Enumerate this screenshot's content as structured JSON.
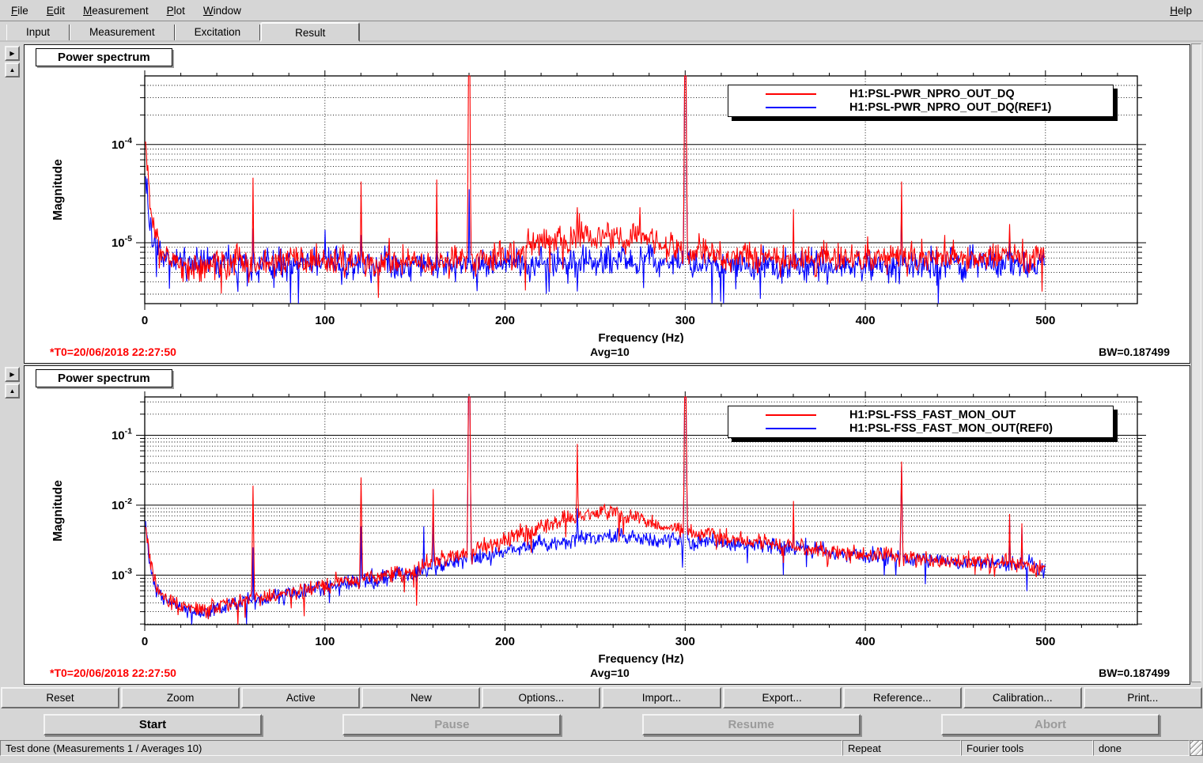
{
  "menu": {
    "items": [
      {
        "label": "File"
      },
      {
        "label": "Edit"
      },
      {
        "label": "Measurement"
      },
      {
        "label": "Plot"
      },
      {
        "label": "Window"
      }
    ],
    "help": "Help"
  },
  "tabs": [
    {
      "label": "Input",
      "active": false
    },
    {
      "label": "Measurement",
      "active": false
    },
    {
      "label": "Excitation",
      "active": false
    },
    {
      "label": "Result",
      "active": true
    }
  ],
  "ui": {
    "icons": {
      "right_arrow": "▶",
      "up_arrow": "▲"
    }
  },
  "toolbar": [
    "Reset",
    "Zoom",
    "Active",
    "New",
    "Options...",
    "Import...",
    "Export...",
    "Reference...",
    "Calibration...",
    "Print..."
  ],
  "controls": [
    {
      "label": "Start",
      "enabled": true
    },
    {
      "label": "Pause",
      "enabled": false
    },
    {
      "label": "Resume",
      "enabled": false
    },
    {
      "label": "Abort",
      "enabled": false
    }
  ],
  "statusbar": {
    "message": "Test done (Measurements 1 / Averages 10)",
    "repeat": "Repeat",
    "tools": "Fourier tools",
    "state": "done"
  },
  "chart_data": [
    {
      "type": "line",
      "title": "Power spectrum",
      "xlabel": "Frequency (Hz)",
      "ylabel": "Magnitude",
      "x_range": [
        0,
        551
      ],
      "x_data_range": [
        0,
        500
      ],
      "y_range": [
        2.4e-06,
        0.0005
      ],
      "x_ticks": [
        0,
        100,
        200,
        300,
        400,
        500
      ],
      "x_minor_step": 20,
      "y_decade_labels": [
        -4,
        -5
      ],
      "grid": true,
      "legend_position": "top-right",
      "footer": {
        "t0": "*T0=20/06/2018 22:27:50",
        "avg": "Avg=10",
        "bw": "BW=0.187499"
      },
      "legend": [
        {
          "label": "H1:PSL-PWR_NPRO_OUT_DQ",
          "color": "#ff0000"
        },
        {
          "label": "H1:PSL-PWR_NPRO_OUT_DQ(REF1)",
          "color": "#0000ff"
        }
      ],
      "series": [
        {
          "name": "H1:PSL-PWR_NPRO_OUT_DQ",
          "color": "#ff0000",
          "noise_sigma": 0.09,
          "seed": 11,
          "envelope": [
            [
              0.5,
              9e-05
            ],
            [
              1.5,
              6e-05
            ],
            [
              3,
              2.5e-05
            ],
            [
              5,
              1.4e-05
            ],
            [
              8,
              9e-06
            ],
            [
              12,
              7.5e-06
            ],
            [
              20,
              6.5e-06
            ],
            [
              35,
              6.2e-06
            ],
            [
              60,
              6.2e-06
            ],
            [
              100,
              6.4e-06
            ],
            [
              150,
              6.4e-06
            ],
            [
              190,
              6.8e-06
            ],
            [
              205,
              7.5e-06
            ],
            [
              215,
              9e-06
            ],
            [
              228,
              1.05e-05
            ],
            [
              240,
              1.15e-05
            ],
            [
              252,
              1.2e-05
            ],
            [
              262,
              1.1e-05
            ],
            [
              272,
              1.05e-05
            ],
            [
              278,
              1.15e-05
            ],
            [
              285,
              9.5e-06
            ],
            [
              295,
              8.5e-06
            ],
            [
              305,
              8e-06
            ],
            [
              320,
              7.5e-06
            ],
            [
              340,
              7.2e-06
            ],
            [
              370,
              7e-06
            ],
            [
              400,
              7e-06
            ],
            [
              430,
              7e-06
            ],
            [
              460,
              7e-06
            ],
            [
              485,
              7.2e-06
            ],
            [
              500,
              7.5e-06
            ]
          ],
          "spikes": [
            [
              60,
              4.6e-05
            ],
            [
              120,
              4.2e-05
            ],
            [
              162,
              4.4e-05
            ],
            [
              180,
              0.0009
            ],
            [
              240,
              2.3e-05
            ],
            [
              257,
              1.6e-05
            ],
            [
              275,
              2.3e-05
            ],
            [
              300,
              0.0012
            ],
            [
              360,
              2.2e-05
            ],
            [
              420,
              4.2e-05
            ],
            [
              444,
              1.2e-05
            ],
            [
              480,
              1.55e-05
            ]
          ]
        },
        {
          "name": "H1:PSL-PWR_NPRO_OUT_DQ(REF1)",
          "color": "#0000ff",
          "noise_sigma": 0.085,
          "seed": 22,
          "envelope": [
            [
              0.5,
              5e-05
            ],
            [
              1.5,
              4e-05
            ],
            [
              3,
              1.8e-05
            ],
            [
              5,
              1.1e-05
            ],
            [
              8,
              8e-06
            ],
            [
              12,
              7e-06
            ],
            [
              20,
              6.2e-06
            ],
            [
              50,
              6e-06
            ],
            [
              100,
              6.1e-06
            ],
            [
              200,
              6.1e-06
            ],
            [
              240,
              6.4e-06
            ],
            [
              260,
              6.6e-06
            ],
            [
              300,
              6.2e-06
            ],
            [
              350,
              6e-06
            ],
            [
              400,
              6e-06
            ],
            [
              450,
              6e-06
            ],
            [
              500,
              6.3e-06
            ]
          ],
          "spikes": [
            [
              60,
              1.4e-05
            ],
            [
              100,
              1.35e-05
            ],
            [
              120,
              1.2e-05
            ],
            [
              162,
              1.3e-05
            ],
            [
              180,
              3.5e-05
            ],
            [
              300,
              0.0009
            ],
            [
              360,
              1.1e-05
            ],
            [
              420,
              2.7e-05
            ],
            [
              480,
              1.05e-05
            ]
          ]
        }
      ]
    },
    {
      "type": "line",
      "title": "Power spectrum",
      "xlabel": "Frequency (Hz)",
      "ylabel": "Magnitude",
      "x_range": [
        0,
        551
      ],
      "x_data_range": [
        0,
        500
      ],
      "y_range": [
        0.000196,
        0.353
      ],
      "x_ticks": [
        0,
        100,
        200,
        300,
        400,
        500
      ],
      "x_minor_step": 20,
      "y_decade_labels": [
        -1,
        -2,
        -3
      ],
      "grid": true,
      "legend_position": "top-right",
      "footer": {
        "t0": "*T0=20/06/2018 22:27:50",
        "avg": "Avg=10",
        "bw": "BW=0.187499"
      },
      "legend": [
        {
          "label": "H1:PSL-FSS_FAST_MON_OUT",
          "color": "#ff0000"
        },
        {
          "label": "H1:PSL-FSS_FAST_MON_OUT(REF0)",
          "color": "#0000ff"
        }
      ],
      "series": [
        {
          "name": "H1:PSL-FSS_FAST_MON_OUT",
          "color": "#ff0000",
          "noise_sigma": 0.07,
          "seed": 33,
          "envelope": [
            [
              0.5,
              0.005
            ],
            [
              1.5,
              0.003
            ],
            [
              3,
              0.0014
            ],
            [
              6,
              0.0007
            ],
            [
              10,
              0.0005
            ],
            [
              16,
              0.00038
            ],
            [
              25,
              0.00032
            ],
            [
              35,
              0.00034
            ],
            [
              50,
              0.0004
            ],
            [
              65,
              0.00048
            ],
            [
              80,
              0.00058
            ],
            [
              100,
              0.00072
            ],
            [
              115,
              0.00082
            ],
            [
              130,
              0.00095
            ],
            [
              145,
              0.00115
            ],
            [
              160,
              0.00145
            ],
            [
              175,
              0.0019
            ],
            [
              190,
              0.0026
            ],
            [
              205,
              0.0036
            ],
            [
              220,
              0.005
            ],
            [
              232,
              0.0063
            ],
            [
              245,
              0.0074
            ],
            [
              255,
              0.0078
            ],
            [
              265,
              0.0072
            ],
            [
              275,
              0.0062
            ],
            [
              285,
              0.0052
            ],
            [
              295,
              0.0045
            ],
            [
              310,
              0.0038
            ],
            [
              325,
              0.0033
            ],
            [
              340,
              0.003
            ],
            [
              355,
              0.0027
            ],
            [
              370,
              0.00235
            ],
            [
              385,
              0.0021
            ],
            [
              400,
              0.00195
            ],
            [
              415,
              0.0018
            ],
            [
              430,
              0.0017
            ],
            [
              445,
              0.0016
            ],
            [
              460,
              0.00155
            ],
            [
              475,
              0.00155
            ],
            [
              490,
              0.0014
            ],
            [
              500,
              0.0012
            ]
          ],
          "spikes": [
            [
              60,
              0.019
            ],
            [
              120,
              0.025
            ],
            [
              160,
              0.017
            ],
            [
              180,
              0.55
            ],
            [
              240,
              0.075
            ],
            [
              300,
              0.7
            ],
            [
              360,
              0.0115
            ],
            [
              420,
              0.042
            ],
            [
              480,
              0.0075
            ],
            [
              487,
              0.0055
            ]
          ]
        },
        {
          "name": "H1:PSL-FSS_FAST_MON_OUT(REF0)",
          "color": "#0000ff",
          "noise_sigma": 0.065,
          "seed": 44,
          "envelope": [
            [
              0.5,
              0.0055
            ],
            [
              1.5,
              0.0032
            ],
            [
              3,
              0.0013
            ],
            [
              6,
              0.00065
            ],
            [
              10,
              0.00048
            ],
            [
              16,
              0.00036
            ],
            [
              25,
              0.0003
            ],
            [
              35,
              0.00032
            ],
            [
              50,
              0.00038
            ],
            [
              65,
              0.00046
            ],
            [
              80,
              0.00055
            ],
            [
              100,
              0.00068
            ],
            [
              115,
              0.00078
            ],
            [
              130,
              0.0009
            ],
            [
              145,
              0.00105
            ],
            [
              160,
              0.00125
            ],
            [
              175,
              0.00155
            ],
            [
              190,
              0.0019
            ],
            [
              205,
              0.0023
            ],
            [
              220,
              0.0028
            ],
            [
              232,
              0.0031
            ],
            [
              245,
              0.0034
            ],
            [
              255,
              0.0035
            ],
            [
              265,
              0.00345
            ],
            [
              275,
              0.00335
            ],
            [
              285,
              0.0032
            ],
            [
              295,
              0.0031
            ],
            [
              310,
              0.003
            ],
            [
              325,
              0.00285
            ],
            [
              340,
              0.0027
            ],
            [
              355,
              0.0025
            ],
            [
              370,
              0.0023
            ],
            [
              385,
              0.0021
            ],
            [
              400,
              0.00195
            ],
            [
              415,
              0.0018
            ],
            [
              430,
              0.0017
            ],
            [
              445,
              0.0016
            ],
            [
              460,
              0.00155
            ],
            [
              475,
              0.00155
            ],
            [
              490,
              0.0014
            ],
            [
              500,
              0.0012
            ]
          ],
          "spikes": [
            [
              60,
              0.0025
            ],
            [
              120,
              0.005
            ],
            [
              155,
              0.005
            ],
            [
              160,
              0.009
            ],
            [
              180,
              0.5
            ],
            [
              240,
              0.009
            ],
            [
              300,
              0.65
            ],
            [
              360,
              0.005
            ],
            [
              420,
              0.036
            ],
            [
              480,
              0.0065
            ],
            [
              487,
              0.0048
            ]
          ]
        }
      ]
    }
  ]
}
